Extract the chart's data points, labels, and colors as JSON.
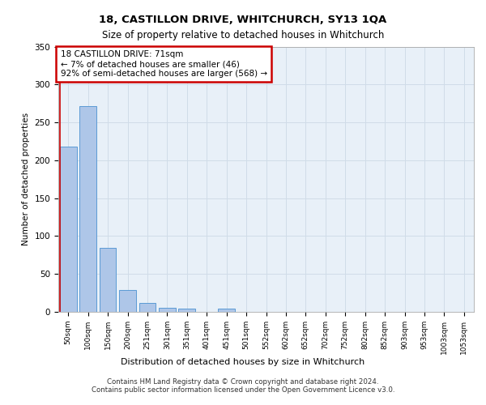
{
  "title1": "18, CASTILLON DRIVE, WHITCHURCH, SY13 1QA",
  "title2": "Size of property relative to detached houses in Whitchurch",
  "xlabel": "Distribution of detached houses by size in Whitchurch",
  "ylabel": "Number of detached properties",
  "bar_labels": [
    "50sqm",
    "100sqm",
    "150sqm",
    "200sqm",
    "251sqm",
    "301sqm",
    "351sqm",
    "401sqm",
    "451sqm",
    "501sqm",
    "552sqm",
    "602sqm",
    "652sqm",
    "702sqm",
    "752sqm",
    "802sqm",
    "852sqm",
    "903sqm",
    "953sqm",
    "1003sqm",
    "1053sqm"
  ],
  "bar_values": [
    218,
    271,
    84,
    29,
    12,
    5,
    4,
    0,
    4,
    0,
    0,
    0,
    0,
    0,
    0,
    0,
    0,
    0,
    0,
    0,
    0
  ],
  "bar_color": "#aec6e8",
  "bar_edge_color": "#5b9bd5",
  "grid_color": "#d0dce8",
  "background_color": "#e8f0f8",
  "annotation_text": "18 CASTILLON DRIVE: 71sqm\n← 7% of detached houses are smaller (46)\n92% of semi-detached houses are larger (568) →",
  "annotation_box_color": "#ffffff",
  "annotation_border_color": "#cc0000",
  "ylim": [
    0,
    350
  ],
  "yticks": [
    0,
    50,
    100,
    150,
    200,
    250,
    300,
    350
  ],
  "footer1": "Contains HM Land Registry data © Crown copyright and database right 2024.",
  "footer2": "Contains public sector information licensed under the Open Government Licence v3.0."
}
